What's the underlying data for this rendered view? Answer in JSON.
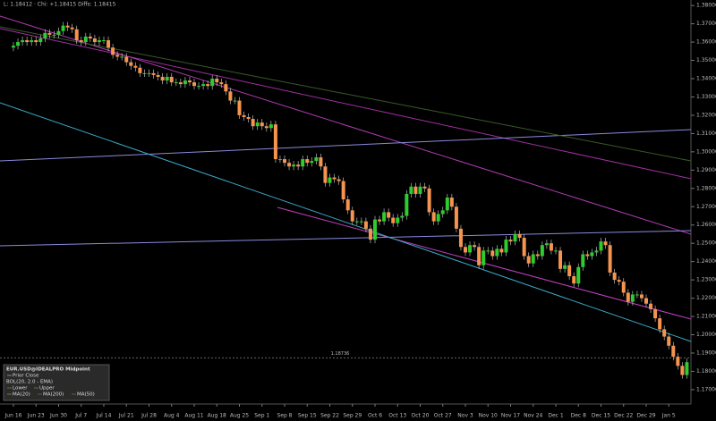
{
  "chart_data": {
    "type": "candlestick",
    "header_text": "L: 1.18412 · Chi: +1.18415 Diffs: 1.18415",
    "categories": [
      "Jun 16",
      null,
      null,
      null,
      null,
      "Jun 23",
      null,
      null,
      null,
      null,
      "Jun 30",
      null,
      null,
      null,
      null,
      "Jul 7",
      null,
      null,
      null,
      null,
      "Jul 14",
      null,
      null,
      null,
      null,
      "Jul 21",
      null,
      null,
      null,
      null,
      "Jul 28",
      null,
      null,
      null,
      null,
      "Aug 4",
      null,
      null,
      null,
      null,
      "Aug 11",
      null,
      null,
      null,
      null,
      "Aug 18",
      null,
      null,
      null,
      null,
      "Aug 25",
      null,
      null,
      null,
      null,
      "Sep 1",
      null,
      null,
      null,
      null,
      "Sep 8",
      null,
      null,
      null,
      null,
      "Sep 15",
      null,
      null,
      null,
      null,
      "Sep 22",
      null,
      null,
      null,
      null,
      "Sep 29",
      null,
      null,
      null,
      null,
      "Oct 6",
      null,
      null,
      null,
      null,
      "Oct 13",
      null,
      null,
      null,
      null,
      "Oct 20",
      null,
      null,
      null,
      null,
      "Oct 27",
      null,
      null,
      null,
      null,
      "Nov 3",
      null,
      null,
      null,
      null,
      "Nov 10",
      null,
      null,
      null,
      null,
      "Nov 17",
      null,
      null,
      null,
      null,
      "Nov 24",
      null,
      null,
      null,
      null,
      "Dec 1",
      null,
      null,
      null,
      null,
      "Dec 8",
      null,
      null,
      null,
      null,
      "Dec 15",
      null,
      null,
      null,
      null,
      "Dec 22",
      null,
      null,
      null,
      null,
      "Dec 29",
      null,
      null,
      null,
      null,
      "Jan 5",
      null,
      null,
      null,
      null
    ],
    "open": [
      1.357,
      1.358,
      1.36,
      1.361,
      1.36,
      1.361,
      1.36,
      1.362,
      1.365,
      1.364,
      1.364,
      1.366,
      1.369,
      1.368,
      1.367,
      1.361,
      1.36,
      1.363,
      1.362,
      1.36,
      1.361,
      1.361,
      1.357,
      1.353,
      1.352,
      1.352,
      1.349,
      1.347,
      1.346,
      1.343,
      1.343,
      1.343,
      1.342,
      1.341,
      1.339,
      1.341,
      1.338,
      1.338,
      1.337,
      1.339,
      1.338,
      1.336,
      1.336,
      1.337,
      1.336,
      1.34,
      1.338,
      1.337,
      1.333,
      1.328,
      1.328,
      1.32,
      1.319,
      1.318,
      1.314,
      1.316,
      1.314,
      1.313,
      1.315,
      1.296,
      1.296,
      1.294,
      1.292,
      1.293,
      1.292,
      1.296,
      1.294,
      1.295,
      1.297,
      1.292,
      1.283,
      1.286,
      1.285,
      1.284,
      1.274,
      1.268,
      1.262,
      1.262,
      1.262,
      1.258,
      1.252,
      1.263,
      1.262,
      1.267,
      1.264,
      1.261,
      1.264,
      1.265,
      1.277,
      1.281,
      1.277,
      1.281,
      1.28,
      1.267,
      1.262,
      1.266,
      1.268,
      1.275,
      1.27,
      1.258,
      1.248,
      1.245,
      1.249,
      1.248,
      1.238,
      1.246,
      1.246,
      1.243,
      1.247,
      1.245,
      1.252,
      1.251,
      1.255,
      1.253,
      1.243,
      1.239,
      1.244,
      1.243,
      1.249,
      1.25,
      1.246,
      1.246,
      1.236,
      1.238,
      1.232,
      1.228,
      1.237,
      1.244,
      1.243,
      1.245,
      1.246,
      1.251,
      1.249,
      1.234,
      1.23,
      1.229,
      1.223,
      1.218,
      1.222,
      1.222,
      1.22,
      1.217,
      1.214,
      1.209,
      1.203,
      1.199,
      1.194,
      1.188,
      1.183,
      1.178
    ],
    "high": [
      1.36,
      1.362,
      1.363,
      1.363,
      1.363,
      1.363,
      1.364,
      1.367,
      1.367,
      1.366,
      1.368,
      1.371,
      1.371,
      1.37,
      1.369,
      1.363,
      1.365,
      1.365,
      1.364,
      1.363,
      1.363,
      1.363,
      1.359,
      1.355,
      1.354,
      1.354,
      1.351,
      1.349,
      1.348,
      1.345,
      1.345,
      1.345,
      1.344,
      1.343,
      1.343,
      1.343,
      1.34,
      1.34,
      1.341,
      1.341,
      1.34,
      1.338,
      1.339,
      1.339,
      1.342,
      1.342,
      1.34,
      1.339,
      1.335,
      1.33,
      1.33,
      1.322,
      1.321,
      1.32,
      1.318,
      1.318,
      1.316,
      1.317,
      1.317,
      1.298,
      1.298,
      1.296,
      1.295,
      1.295,
      1.298,
      1.298,
      1.297,
      1.299,
      1.299,
      1.294,
      1.288,
      1.288,
      1.287,
      1.286,
      1.276,
      1.27,
      1.264,
      1.264,
      1.264,
      1.26,
      1.265,
      1.265,
      1.269,
      1.269,
      1.266,
      1.266,
      1.267,
      1.279,
      1.283,
      1.283,
      1.283,
      1.283,
      1.282,
      1.269,
      1.268,
      1.27,
      1.277,
      1.277,
      1.272,
      1.26,
      1.25,
      1.251,
      1.251,
      1.25,
      1.248,
      1.248,
      1.248,
      1.249,
      1.249,
      1.254,
      1.254,
      1.257,
      1.257,
      1.255,
      1.245,
      1.246,
      1.246,
      1.251,
      1.252,
      1.252,
      1.248,
      1.248,
      1.24,
      1.24,
      1.234,
      1.239,
      1.246,
      1.246,
      1.247,
      1.248,
      1.253,
      1.253,
      1.251,
      1.236,
      1.232,
      1.231,
      1.225,
      1.224,
      1.224,
      1.224,
      1.222,
      1.219,
      1.216,
      1.211,
      1.205,
      1.201,
      1.196,
      1.19,
      1.185,
      1.187
    ],
    "low": [
      1.355,
      1.356,
      1.358,
      1.358,
      1.358,
      1.358,
      1.358,
      1.36,
      1.362,
      1.362,
      1.362,
      1.364,
      1.366,
      1.365,
      1.359,
      1.358,
      1.358,
      1.36,
      1.358,
      1.358,
      1.359,
      1.355,
      1.351,
      1.35,
      1.35,
      1.347,
      1.345,
      1.344,
      1.341,
      1.341,
      1.341,
      1.34,
      1.339,
      1.337,
      1.337,
      1.336,
      1.336,
      1.335,
      1.335,
      1.336,
      1.334,
      1.334,
      1.334,
      1.334,
      1.334,
      1.336,
      1.335,
      1.331,
      1.326,
      1.326,
      1.318,
      1.317,
      1.316,
      1.312,
      1.312,
      1.312,
      1.311,
      1.311,
      1.294,
      1.294,
      1.292,
      1.29,
      1.29,
      1.29,
      1.29,
      1.292,
      1.292,
      1.293,
      1.29,
      1.281,
      1.281,
      1.283,
      1.282,
      1.272,
      1.266,
      1.26,
      1.26,
      1.26,
      1.256,
      1.25,
      1.25,
      1.26,
      1.26,
      1.262,
      1.259,
      1.259,
      1.262,
      1.263,
      1.275,
      1.275,
      1.275,
      1.278,
      1.265,
      1.26,
      1.26,
      1.264,
      1.266,
      1.268,
      1.256,
      1.246,
      1.243,
      1.243,
      1.246,
      1.236,
      1.236,
      1.244,
      1.241,
      1.241,
      1.243,
      1.243,
      1.249,
      1.249,
      1.251,
      1.241,
      1.237,
      1.237,
      1.241,
      1.241,
      1.247,
      1.244,
      1.244,
      1.234,
      1.234,
      1.23,
      1.226,
      1.226,
      1.235,
      1.241,
      1.241,
      1.243,
      1.244,
      1.247,
      1.232,
      1.228,
      1.227,
      1.221,
      1.216,
      1.216,
      1.22,
      1.218,
      1.215,
      1.212,
      1.207,
      1.201,
      1.197,
      1.192,
      1.186,
      1.181,
      1.176,
      1.176
    ],
    "close": [
      1.358,
      1.36,
      1.361,
      1.36,
      1.361,
      1.36,
      1.362,
      1.365,
      1.364,
      1.364,
      1.366,
      1.369,
      1.368,
      1.367,
      1.361,
      1.36,
      1.363,
      1.362,
      1.36,
      1.361,
      1.361,
      1.357,
      1.353,
      1.352,
      1.352,
      1.349,
      1.347,
      1.346,
      1.343,
      1.343,
      1.343,
      1.342,
      1.341,
      1.339,
      1.341,
      1.338,
      1.338,
      1.337,
      1.339,
      1.338,
      1.336,
      1.336,
      1.337,
      1.336,
      1.34,
      1.338,
      1.337,
      1.333,
      1.328,
      1.328,
      1.32,
      1.319,
      1.318,
      1.314,
      1.316,
      1.314,
      1.313,
      1.315,
      1.296,
      1.296,
      1.294,
      1.292,
      1.293,
      1.292,
      1.296,
      1.294,
      1.295,
      1.297,
      1.292,
      1.283,
      1.286,
      1.285,
      1.284,
      1.274,
      1.268,
      1.262,
      1.262,
      1.262,
      1.258,
      1.252,
      1.263,
      1.262,
      1.267,
      1.264,
      1.261,
      1.264,
      1.265,
      1.277,
      1.281,
      1.277,
      1.281,
      1.28,
      1.267,
      1.262,
      1.266,
      1.268,
      1.275,
      1.27,
      1.258,
      1.248,
      1.245,
      1.249,
      1.248,
      1.238,
      1.246,
      1.246,
      1.243,
      1.247,
      1.245,
      1.252,
      1.251,
      1.255,
      1.253,
      1.243,
      1.239,
      1.244,
      1.243,
      1.249,
      1.25,
      1.246,
      1.246,
      1.236,
      1.238,
      1.232,
      1.228,
      1.237,
      1.244,
      1.243,
      1.245,
      1.246,
      1.251,
      1.249,
      1.234,
      1.23,
      1.229,
      1.223,
      1.218,
      1.222,
      1.222,
      1.22,
      1.217,
      1.214,
      1.209,
      1.203,
      1.199,
      1.194,
      1.188,
      1.183,
      1.178,
      1.185
    ],
    "up_color": "#2ecc2e",
    "down_color": "#f5944f",
    "price_line": 1.18736,
    "ylim": [
      1.168,
      1.383
    ],
    "yticks": [
      {
        "value": 1.17,
        "label": "1.17000"
      },
      {
        "value": 1.18,
        "label": "1.18000"
      },
      {
        "value": 1.19,
        "label": "1.19000"
      },
      {
        "value": 1.2,
        "label": "1.20000"
      },
      {
        "value": 1.21,
        "label": "1.21000"
      },
      {
        "value": 1.22,
        "label": "1.22000"
      },
      {
        "value": 1.23,
        "label": "1.23000"
      },
      {
        "value": 1.24,
        "label": "1.24000"
      },
      {
        "value": 1.25,
        "label": "1.25000"
      },
      {
        "value": 1.26,
        "label": "1.26000"
      },
      {
        "value": 1.27,
        "label": "1.27000"
      },
      {
        "value": 1.28,
        "label": "1.28000"
      },
      {
        "value": 1.29,
        "label": "1.29000"
      },
      {
        "value": 1.3,
        "label": "1.30000"
      },
      {
        "value": 1.31,
        "label": "1.31000"
      },
      {
        "value": 1.32,
        "label": "1.32000"
      },
      {
        "value": 1.33,
        "label": "1.33000"
      },
      {
        "value": 1.34,
        "label": "1.34000"
      },
      {
        "value": 1.35,
        "label": "1.35000"
      },
      {
        "value": 1.36,
        "label": "1.36000"
      },
      {
        "value": 1.37,
        "label": "1.37000"
      },
      {
        "value": 1.38,
        "label": "1.38000"
      }
    ],
    "legend": {
      "title": "EUR.USD@IDEALPRO Midpoint",
      "items": [
        "Prior Close",
        "BOL(20, 2.0 - EMA)",
        "Lower",
        "Upper",
        "MA(20)",
        "MA(200)",
        "MA(50)"
      ]
    }
  }
}
